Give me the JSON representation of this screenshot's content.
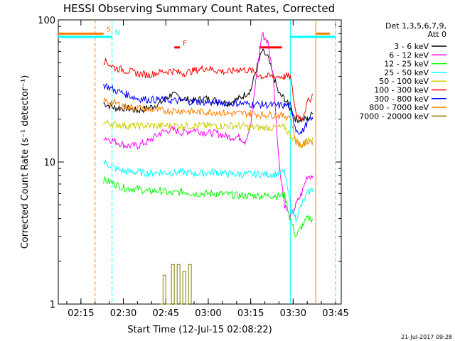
{
  "chart_data": {
    "type": "line",
    "title": "HESSI Observing Summary Count Rates, Corrected",
    "xlabel": "Start Time (12-Jul-15 02:08:22)",
    "ylabel": "Corrected Count Rate (s⁻¹ detector⁻¹)",
    "xlim_min": [
      0,
      100
    ],
    "ylim": [
      1,
      100
    ],
    "yscale": "log",
    "x_ticks": [
      {
        "label": "02:15",
        "t": 8
      },
      {
        "label": "02:30",
        "t": 23
      },
      {
        "label": "02:45",
        "t": 38
      },
      {
        "label": "03:00",
        "t": 53
      },
      {
        "label": "03:15",
        "t": 68
      },
      {
        "label": "03:30",
        "t": 83
      },
      {
        "label": "03:45",
        "t": 98
      }
    ],
    "y_ticks": [
      {
        "label": "100",
        "v": 100
      },
      {
        "label": "10",
        "v": 10
      },
      {
        "label": "1",
        "v": 1
      }
    ],
    "legend_header": [
      "Det 1,3,5,6,7,9,",
      "Att 0"
    ],
    "legend_position": "right",
    "date_stamp": "21-Jul-2017 09:28",
    "flags": [
      {
        "label": "S",
        "color": "#ff7f00",
        "t0": 0,
        "t1": 16,
        "level": 80
      },
      {
        "label": "N",
        "color": "#00ffff",
        "t0": 0,
        "t1": 19,
        "level": 76
      },
      {
        "label": "F",
        "color": "#ff0000",
        "t0": 41,
        "t1": 43,
        "level": 64
      },
      {
        "label": "",
        "color": "#ff0000",
        "t0": 71,
        "t1": 79,
        "level": 64
      },
      {
        "label": "",
        "color": "#ff7f00",
        "t0": 91,
        "t1": 96,
        "level": 80
      },
      {
        "label": "",
        "color": "#00ffff",
        "t0": 82,
        "t1": 98,
        "level": 76
      }
    ],
    "vlines": [
      {
        "t": 13,
        "color": "#ff7f00",
        "style": "dashed"
      },
      {
        "t": 19,
        "color": "#00ffff",
        "style": "dashed"
      },
      {
        "t": 82,
        "color": "#00ffff",
        "style": "solid"
      },
      {
        "t": 91,
        "color": "#ff7f00",
        "style": "solid"
      },
      {
        "t": 98,
        "color": "#ff7f00",
        "style": "dashed"
      },
      {
        "t": 98,
        "color": "#00ffff",
        "style": "dashed"
      }
    ],
    "series": [
      {
        "name": "3 - 6 keV",
        "color": "#000000",
        "points": [
          [
            16,
            26
          ],
          [
            20,
            24
          ],
          [
            24,
            24
          ],
          [
            28,
            23
          ],
          [
            32,
            24
          ],
          [
            36,
            26
          ],
          [
            40,
            30
          ],
          [
            44,
            28
          ],
          [
            48,
            27
          ],
          [
            52,
            28
          ],
          [
            56,
            27
          ],
          [
            60,
            26
          ],
          [
            64,
            28
          ],
          [
            68,
            32
          ],
          [
            70,
            45
          ],
          [
            72,
            60
          ],
          [
            74,
            55
          ],
          [
            76,
            40
          ],
          [
            78,
            30
          ],
          [
            80,
            28
          ],
          [
            84,
            20
          ],
          [
            88,
            20
          ],
          [
            90,
            22
          ]
        ]
      },
      {
        "name": "6 - 12 keV",
        "color": "#ff00ff",
        "points": [
          [
            16,
            15
          ],
          [
            20,
            14
          ],
          [
            24,
            13
          ],
          [
            28,
            13
          ],
          [
            32,
            14
          ],
          [
            36,
            16
          ],
          [
            40,
            17
          ],
          [
            44,
            16
          ],
          [
            48,
            17
          ],
          [
            52,
            16
          ],
          [
            56,
            16
          ],
          [
            60,
            15
          ],
          [
            64,
            15
          ],
          [
            66,
            14
          ],
          [
            68,
            18
          ],
          [
            70,
            40
          ],
          [
            72,
            80
          ],
          [
            74,
            70
          ],
          [
            76,
            40
          ],
          [
            77,
            20
          ],
          [
            78,
            10
          ],
          [
            80,
            5
          ],
          [
            82,
            4
          ],
          [
            84,
            5
          ],
          [
            86,
            6
          ],
          [
            88,
            8
          ],
          [
            90,
            8
          ]
        ]
      },
      {
        "name": "12 - 25 keV",
        "color": "#00ff00",
        "points": [
          [
            16,
            7.5
          ],
          [
            20,
            7
          ],
          [
            24,
            6.5
          ],
          [
            28,
            6.5
          ],
          [
            32,
            6.2
          ],
          [
            36,
            6.3
          ],
          [
            40,
            6
          ],
          [
            44,
            6.2
          ],
          [
            48,
            6
          ],
          [
            52,
            6
          ],
          [
            56,
            6
          ],
          [
            60,
            5.9
          ],
          [
            64,
            5.8
          ],
          [
            68,
            5.8
          ],
          [
            72,
            5.8
          ],
          [
            76,
            5.8
          ],
          [
            80,
            5.8
          ],
          [
            82,
            4
          ],
          [
            84,
            3
          ],
          [
            86,
            3.5
          ],
          [
            88,
            4
          ],
          [
            90,
            4
          ]
        ]
      },
      {
        "name": "25 - 50 keV",
        "color": "#00ffff",
        "points": [
          [
            16,
            10
          ],
          [
            20,
            9
          ],
          [
            24,
            8.5
          ],
          [
            28,
            8.5
          ],
          [
            32,
            8.3
          ],
          [
            36,
            8.5
          ],
          [
            40,
            8.4
          ],
          [
            44,
            8.5
          ],
          [
            48,
            8.3
          ],
          [
            52,
            8.4
          ],
          [
            56,
            8.5
          ],
          [
            60,
            8.2
          ],
          [
            64,
            8.2
          ],
          [
            68,
            8.2
          ],
          [
            72,
            8.2
          ],
          [
            76,
            8.2
          ],
          [
            80,
            8.5
          ],
          [
            82,
            5
          ],
          [
            84,
            4
          ],
          [
            86,
            5
          ],
          [
            88,
            6
          ],
          [
            90,
            6.5
          ]
        ]
      },
      {
        "name": "50 - 100 keV",
        "color": "#cccc00",
        "points": [
          [
            16,
            19
          ],
          [
            20,
            18.5
          ],
          [
            24,
            18
          ],
          [
            28,
            18
          ],
          [
            32,
            18
          ],
          [
            36,
            18
          ],
          [
            40,
            18
          ],
          [
            44,
            18
          ],
          [
            48,
            18
          ],
          [
            52,
            18
          ],
          [
            56,
            18
          ],
          [
            60,
            18
          ],
          [
            64,
            18
          ],
          [
            68,
            17.5
          ],
          [
            72,
            17.5
          ],
          [
            76,
            17.5
          ],
          [
            80,
            17.5
          ],
          [
            84,
            14
          ],
          [
            86,
            13
          ],
          [
            88,
            14
          ],
          [
            90,
            15
          ]
        ]
      },
      {
        "name": "100 - 300 keV",
        "color": "#ff0000",
        "points": [
          [
            16,
            52
          ],
          [
            20,
            46
          ],
          [
            24,
            44
          ],
          [
            28,
            42
          ],
          [
            32,
            41
          ],
          [
            36,
            43
          ],
          [
            40,
            44
          ],
          [
            44,
            42
          ],
          [
            48,
            44
          ],
          [
            52,
            46
          ],
          [
            56,
            44
          ],
          [
            60,
            43
          ],
          [
            64,
            45
          ],
          [
            68,
            44
          ],
          [
            72,
            40
          ],
          [
            76,
            40
          ],
          [
            80,
            40
          ],
          [
            82,
            40
          ],
          [
            84,
            22
          ],
          [
            86,
            20
          ],
          [
            88,
            26
          ],
          [
            90,
            30
          ]
        ]
      },
      {
        "name": "300 - 800 keV",
        "color": "#0000ff",
        "points": [
          [
            16,
            35
          ],
          [
            20,
            32
          ],
          [
            24,
            30
          ],
          [
            28,
            28
          ],
          [
            32,
            27.5
          ],
          [
            36,
            27.5
          ],
          [
            40,
            27
          ],
          [
            44,
            27
          ],
          [
            48,
            26.5
          ],
          [
            52,
            26.5
          ],
          [
            56,
            26
          ],
          [
            60,
            26
          ],
          [
            64,
            26
          ],
          [
            68,
            25.5
          ],
          [
            72,
            25.5
          ],
          [
            76,
            25
          ],
          [
            80,
            25
          ],
          [
            82,
            25
          ],
          [
            84,
            17
          ],
          [
            86,
            16
          ],
          [
            88,
            19
          ],
          [
            90,
            20
          ]
        ]
      },
      {
        "name": "800 - 7000 keV",
        "color": "#ff7f00",
        "points": [
          [
            16,
            27
          ],
          [
            20,
            26
          ],
          [
            24,
            24.5
          ],
          [
            28,
            24
          ],
          [
            32,
            23.5
          ],
          [
            36,
            23
          ],
          [
            40,
            23
          ],
          [
            44,
            23
          ],
          [
            48,
            22.5
          ],
          [
            52,
            22.5
          ],
          [
            56,
            22.5
          ],
          [
            60,
            22
          ],
          [
            64,
            22
          ],
          [
            68,
            22
          ],
          [
            72,
            21.5
          ],
          [
            76,
            21.5
          ],
          [
            80,
            21
          ],
          [
            82,
            21
          ],
          [
            84,
            14
          ],
          [
            86,
            13
          ],
          [
            88,
            14
          ],
          [
            90,
            14
          ]
        ]
      },
      {
        "name": "7000 - 20000 keV",
        "color": "#808000",
        "points": [
          [
            36,
            1
          ],
          [
            37,
            1.6
          ],
          [
            38,
            1
          ],
          [
            40,
            1.9
          ],
          [
            41,
            1
          ],
          [
            42,
            1.9
          ],
          [
            43,
            1
          ],
          [
            44,
            1.7
          ],
          [
            45,
            1
          ],
          [
            46,
            1.9
          ],
          [
            47,
            1
          ]
        ]
      }
    ]
  }
}
